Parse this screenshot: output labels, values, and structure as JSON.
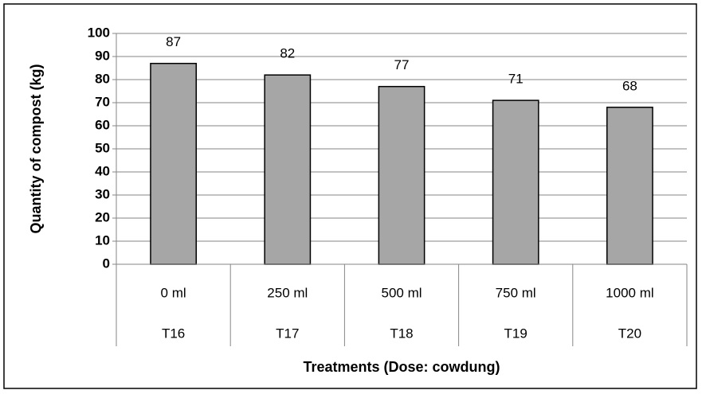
{
  "chart_data": {
    "type": "bar",
    "categories": [
      "0 ml",
      "250 ml",
      "500 ml",
      "750 ml",
      "1000 ml"
    ],
    "groups": [
      "T16",
      "T17",
      "T18",
      "T19",
      "T20"
    ],
    "values": [
      87,
      82,
      77,
      71,
      68
    ],
    "color": "#a6a6a6",
    "x_label": "Treatments (Dose: cowdung)",
    "y_label": "Quantity of compost (kg)",
    "ylim": [
      0,
      100
    ],
    "yticks": [
      0,
      10,
      20,
      30,
      40,
      50,
      60,
      70,
      80,
      90,
      100
    ],
    "grid": true
  }
}
